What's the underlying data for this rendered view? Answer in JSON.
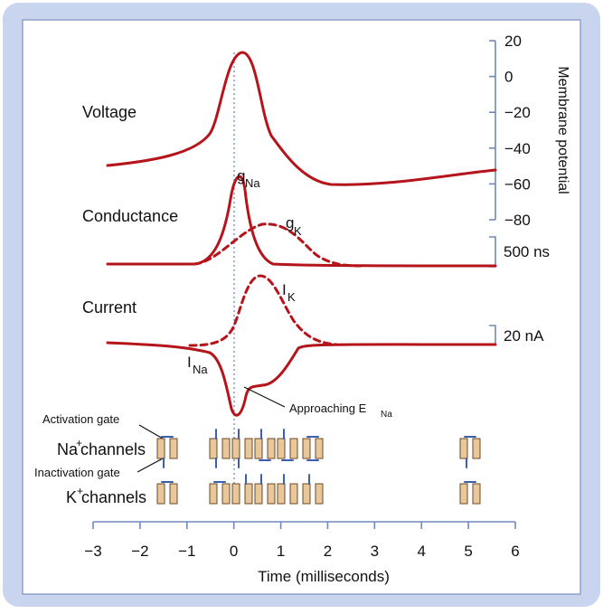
{
  "colors": {
    "frame_outer": "#c9d4ee",
    "frame_inner_border": "#7d8fbf",
    "axis_blue": "#6f88c0",
    "curve_red": "#b5141b",
    "channel_fill": "#e8c79a",
    "channel_stroke": "#6b4a26",
    "gate_blue": "#3c5fb0",
    "dashed_line": "#6f88c0"
  },
  "labels": {
    "voltage": "Voltage",
    "conductance": "Conductance",
    "current": "Current",
    "g_na_main": "g",
    "g_na_sub": "Na",
    "g_k_main": "g",
    "g_k_sub": "K",
    "i_k_main": "I",
    "i_k_sub": "K",
    "i_na_main": "I",
    "i_na_sub": "Na",
    "approaching": "Approaching E",
    "approaching_sub": "Na",
    "activation_gate": "Activation gate",
    "inactivation_gate": "Inactivation gate",
    "na_channels_main": "Na",
    "na_channels_sup": "+",
    "na_channels_rest": " channels",
    "k_channels_main": "K",
    "k_channels_sup": "+",
    "k_channels_rest": " channels",
    "membrane_potential": "Membrane potential",
    "scale_conductance": "500 ns",
    "scale_current": "20 nA"
  },
  "right_axis_ticks": [
    "20",
    "0",
    "−20",
    "−40",
    "−60",
    "−80"
  ],
  "time_axis": {
    "label": "Time (milliseconds)",
    "ticks": [
      "−3",
      "−2",
      "−1",
      "0",
      "1",
      "2",
      "3",
      "4",
      "5",
      "6"
    ]
  }
}
